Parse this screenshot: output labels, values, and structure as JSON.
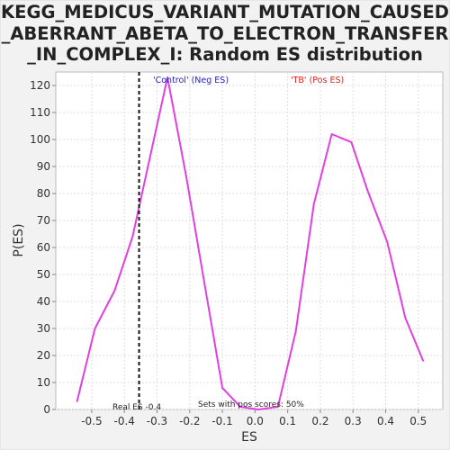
{
  "chart_data": {
    "type": "line",
    "title": "KEGG_MEDICUS_VARIANT_MUTATION_CAUSED_ABERRANT_ABETA_TO_ELECTRON_TRANSFER_IN_COMPLEX_I: Random ES distribution",
    "xlabel": "ES",
    "ylabel": "P(ES)",
    "xlim": [
      -0.61,
      0.575
    ],
    "ylim": [
      0,
      125
    ],
    "xticks": [
      -0.5,
      -0.4,
      -0.3,
      -0.2,
      -0.1,
      0.0,
      0.1,
      0.2,
      0.3,
      0.4,
      0.5
    ],
    "xtick_labels": [
      "-0.5",
      "-0.4",
      "-0.3",
      "-0.2",
      "-0.1",
      "0.0",
      "0.1",
      "0.2",
      "0.3",
      "0.4",
      "0.5"
    ],
    "yticks": [
      0,
      10,
      20,
      30,
      40,
      50,
      60,
      70,
      80,
      90,
      100,
      110,
      120
    ],
    "grid": true,
    "series": [
      {
        "color": "#e040e0",
        "x": [
          -0.545,
          -0.49,
          -0.43,
          -0.375,
          -0.268,
          -0.21,
          -0.158,
          -0.1,
          -0.045,
          0.01,
          0.07,
          0.125,
          0.18,
          0.235,
          0.295,
          0.345,
          0.405,
          0.46,
          0.515
        ],
        "y": [
          3,
          30,
          44,
          64,
          123,
          86,
          49,
          8,
          1,
          0,
          1,
          29,
          76,
          102,
          99,
          81,
          62,
          34,
          18
        ]
      }
    ],
    "real_es": -0.355,
    "annotations": {
      "neg_label": "'Control' (Neg ES)",
      "pos_label": "'TB' (Pos ES)",
      "neg_color": "#2020cc",
      "pos_color": "#dd2222",
      "real_es_label": "Real ES -0.4",
      "pos_scores_label": "Sets with pos scores: 50%"
    }
  }
}
